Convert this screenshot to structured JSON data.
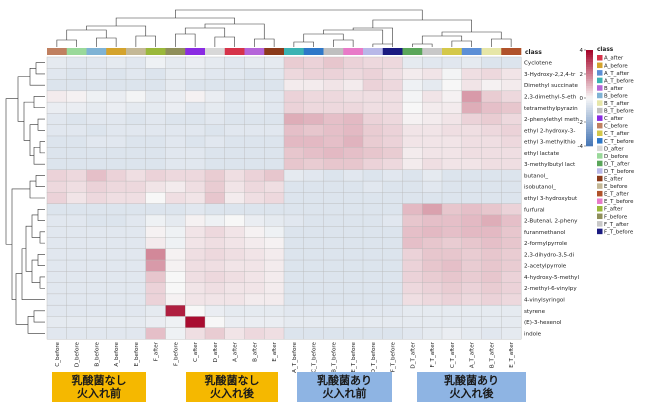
{
  "chart_data": {
    "type": "heatmap",
    "title": "",
    "columns": [
      "C_before",
      "D_before",
      "B_before",
      "A_before",
      "E_before",
      "F_after",
      "F_before",
      "C_after",
      "D_after",
      "A_after",
      "B_after",
      "E_after",
      "A_T_before",
      "C_T_before",
      "B_T_before",
      "E_T_before",
      "D_T_before",
      "F_T_before",
      "D_T_after",
      "F_T_after",
      "C_T_after",
      "A_T_after",
      "B_T_after",
      "E_T_after"
    ],
    "column_classes": [
      "C_before",
      "D_before",
      "B_before",
      "A_before",
      "E_before",
      "F_after",
      "F_before",
      "C_after",
      "D_after",
      "A_after",
      "B_after",
      "E_after",
      "A_T_before",
      "C_T_before",
      "B_T_before",
      "E_T_before",
      "D_T_before",
      "F_T_before",
      "D_T_after",
      "F_T_after",
      "C_T_after",
      "A_T_after",
      "B_T_after",
      "E_T_after"
    ],
    "rows": [
      "Cyclotene",
      "3-Hydroxy-2,2,4-tr",
      "Dimethyl succinate",
      "2,3-dimethyl-5-eth",
      "tetramethylpyrazin",
      "2-phenylethyl meth",
      "ethyl 2-hydroxy-3-",
      "ethyl 3-methylthio",
      "ethyl lactate",
      "3-methylbutyl lact",
      "butanol_",
      "isobutanol_",
      "ethyl 3-hydroxybut",
      "furfural",
      "2-Butenal, 2-pheny",
      "furanmethanol",
      "2-formylpyrrole",
      "2,3-dihydro-3,5-di",
      "2-acetylpyrrole",
      "4-hydroxy-5-methyl",
      "2-methyl-6-vinylpy",
      "4-vinylsyringol",
      "styrene",
      "(E)-3-hexenol",
      "indole"
    ],
    "values": [
      [
        -0.4,
        -0.5,
        -0.5,
        -0.4,
        -0.5,
        -0.2,
        -0.4,
        -0.3,
        -0.4,
        -0.5,
        -0.4,
        -0.4,
        0.7,
        0.6,
        0.8,
        0.6,
        0.5,
        0.5,
        -0.4,
        -0.5,
        -0.5,
        -0.4,
        -0.6,
        -0.6
      ],
      [
        -0.5,
        -0.6,
        -0.5,
        -0.6,
        -0.5,
        -0.6,
        -0.4,
        -0.4,
        -0.5,
        -0.5,
        -0.6,
        -0.5,
        0.5,
        0.6,
        0.6,
        0.5,
        0.6,
        0.4,
        0.2,
        0.3,
        -0.1,
        0.4,
        0.5,
        0.3
      ],
      [
        -0.6,
        -0.6,
        -0.6,
        -0.6,
        -0.6,
        -0.6,
        -0.4,
        -0.6,
        -0.6,
        -0.6,
        -0.6,
        -0.6,
        0.2,
        0.2,
        0.3,
        0.2,
        0.6,
        0.5,
        -0.2,
        -0.4,
        0.0,
        0.3,
        0.1,
        0.2
      ],
      [
        0.2,
        0.1,
        -0.2,
        -0.3,
        -0.1,
        -0.4,
        -0.3,
        0.1,
        -0.3,
        -0.5,
        -0.4,
        -0.5,
        0.6,
        0.5,
        0.5,
        0.4,
        0.4,
        0.4,
        -0.1,
        0.3,
        0.1,
        1.5,
        0.7,
        0.5
      ],
      [
        -0.3,
        -0.3,
        -0.4,
        -0.3,
        -0.4,
        -0.4,
        -0.3,
        -0.5,
        -0.4,
        -0.5,
        -0.4,
        -0.5,
        0.6,
        0.5,
        0.5,
        0.5,
        0.4,
        0.4,
        0.0,
        0.2,
        0.2,
        1.2,
        0.9,
        0.8
      ],
      [
        -0.5,
        -0.6,
        -0.5,
        -0.5,
        -0.6,
        -0.5,
        -0.6,
        -0.6,
        -0.5,
        -0.6,
        -0.6,
        -0.6,
        1.2,
        1.1,
        0.9,
        1.0,
        0.6,
        0.5,
        0.1,
        0.2,
        0.3,
        0.6,
        0.7,
        0.5
      ],
      [
        -0.5,
        -0.5,
        -0.6,
        -0.5,
        -0.5,
        -0.5,
        -0.5,
        -0.5,
        -0.6,
        -0.5,
        -0.5,
        -0.5,
        0.9,
        0.8,
        0.9,
        1.0,
        0.7,
        0.6,
        0.3,
        0.3,
        0.4,
        0.4,
        0.5,
        0.6
      ],
      [
        -0.6,
        -0.6,
        -0.5,
        -0.5,
        -0.6,
        -0.6,
        -0.5,
        -0.6,
        -0.5,
        -0.6,
        -0.6,
        -0.6,
        1.0,
        1.0,
        0.9,
        1.1,
        0.7,
        0.6,
        0.3,
        0.3,
        0.3,
        0.4,
        0.4,
        0.5
      ],
      [
        -0.6,
        -0.6,
        -0.6,
        -0.6,
        -0.6,
        -0.6,
        -0.5,
        -0.5,
        -0.6,
        -0.6,
        -0.6,
        -0.6,
        0.8,
        0.9,
        1.0,
        0.9,
        0.8,
        0.7,
        0.2,
        0.3,
        0.3,
        0.4,
        0.4,
        0.4
      ],
      [
        -0.6,
        -0.6,
        -0.6,
        -0.6,
        -0.6,
        -0.6,
        -0.5,
        -0.5,
        -0.6,
        -0.6,
        -0.6,
        -0.6,
        0.8,
        0.7,
        0.8,
        0.8,
        0.6,
        0.5,
        0.2,
        0.4,
        0.3,
        0.3,
        0.4,
        0.4
      ],
      [
        0.6,
        0.5,
        0.9,
        0.6,
        0.4,
        0.6,
        0.5,
        0.5,
        0.7,
        0.4,
        0.6,
        0.8,
        -0.4,
        -0.5,
        -0.6,
        -0.5,
        -0.6,
        -0.5,
        -0.6,
        -0.4,
        -0.6,
        -0.6,
        -0.6,
        -0.6
      ],
      [
        0.5,
        0.4,
        0.6,
        0.5,
        0.5,
        0.3,
        0.2,
        0.4,
        0.7,
        0.3,
        0.5,
        0.4,
        -0.6,
        -0.6,
        -0.6,
        -0.6,
        -0.5,
        -0.6,
        -0.6,
        -0.5,
        -0.6,
        -0.6,
        -0.6,
        -0.6
      ],
      [
        0.6,
        0.3,
        0.5,
        0.4,
        0.4,
        0.0,
        0.4,
        0.3,
        0.8,
        0.2,
        0.4,
        0.5,
        -0.6,
        -0.6,
        -0.6,
        -0.6,
        -0.6,
        -0.6,
        -0.6,
        -0.6,
        -0.6,
        -0.6,
        -0.6,
        -0.6
      ],
      [
        -0.6,
        -0.6,
        -0.6,
        -0.6,
        -0.6,
        -0.6,
        -0.6,
        -0.5,
        -0.6,
        -0.6,
        -0.6,
        -0.6,
        -0.6,
        -0.6,
        -0.6,
        -0.6,
        -0.6,
        -0.6,
        1.0,
        1.4,
        0.8,
        0.9,
        0.8,
        0.6
      ],
      [
        -0.5,
        -0.5,
        -0.6,
        -0.6,
        -0.5,
        -0.2,
        -0.4,
        0.1,
        -0.2,
        0.0,
        -0.3,
        -0.4,
        -0.5,
        -0.6,
        -0.6,
        -0.6,
        -0.6,
        -0.5,
        0.8,
        0.9,
        0.9,
        1.0,
        1.2,
        0.9
      ],
      [
        -0.5,
        -0.5,
        -0.5,
        -0.5,
        -0.5,
        0.1,
        -0.2,
        0.3,
        0.5,
        0.3,
        0.1,
        -0.2,
        -0.6,
        -0.6,
        -0.6,
        -0.6,
        -0.6,
        -0.6,
        0.9,
        1.0,
        0.9,
        1.0,
        1.0,
        0.8
      ],
      [
        -0.5,
        -0.5,
        -0.5,
        -0.5,
        -0.5,
        0.2,
        -0.2,
        0.3,
        0.4,
        0.3,
        0.2,
        0.1,
        -0.6,
        -0.6,
        -0.6,
        -0.6,
        -0.6,
        -0.6,
        0.9,
        0.8,
        0.7,
        0.8,
        0.9,
        0.8
      ],
      [
        -0.5,
        -0.5,
        -0.5,
        -0.5,
        -0.5,
        1.8,
        0.1,
        0.4,
        0.5,
        0.4,
        0.3,
        0.2,
        -0.6,
        -0.6,
        -0.6,
        -0.6,
        -0.6,
        -0.6,
        0.6,
        0.8,
        0.8,
        0.7,
        0.8,
        0.7
      ],
      [
        -0.5,
        -0.5,
        -0.5,
        -0.5,
        -0.5,
        1.5,
        0.1,
        0.4,
        0.4,
        0.3,
        0.3,
        0.2,
        -0.6,
        -0.6,
        -0.6,
        -0.6,
        -0.6,
        -0.6,
        0.6,
        0.8,
        0.9,
        0.7,
        0.8,
        0.7
      ],
      [
        -0.5,
        -0.5,
        -0.5,
        -0.5,
        -0.5,
        0.8,
        0.0,
        0.4,
        0.5,
        0.4,
        0.3,
        0.2,
        -0.6,
        -0.6,
        -0.6,
        -0.6,
        -0.6,
        -0.6,
        0.6,
        0.7,
        0.8,
        0.7,
        0.8,
        0.6
      ],
      [
        -0.5,
        -0.5,
        -0.5,
        -0.5,
        -0.5,
        0.6,
        0.0,
        0.3,
        0.4,
        0.3,
        0.3,
        0.2,
        -0.6,
        -0.6,
        -0.6,
        -0.6,
        -0.6,
        -0.6,
        0.5,
        0.6,
        0.7,
        0.6,
        0.7,
        0.6
      ],
      [
        -0.5,
        -0.5,
        -0.5,
        -0.5,
        -0.5,
        0.6,
        0.1,
        0.3,
        0.3,
        0.3,
        0.2,
        0.2,
        -0.6,
        -0.6,
        -0.6,
        -0.6,
        -0.6,
        -0.6,
        0.4,
        0.5,
        0.6,
        0.5,
        0.6,
        0.5
      ],
      [
        -0.5,
        -0.5,
        -0.5,
        -0.5,
        -0.5,
        -0.4,
        3.5,
        0.0,
        -0.3,
        -0.4,
        -0.4,
        -0.4,
        -0.5,
        -0.5,
        -0.5,
        -0.5,
        -0.5,
        -0.5,
        -0.4,
        -0.4,
        -0.4,
        -0.4,
        -0.4,
        -0.4
      ],
      [
        -0.4,
        -0.4,
        -0.4,
        -0.4,
        -0.4,
        -0.3,
        -0.2,
        3.8,
        0.0,
        -0.3,
        -0.3,
        -0.3,
        -0.4,
        -0.4,
        -0.4,
        -0.4,
        -0.4,
        -0.4,
        -0.4,
        -0.4,
        -0.4,
        -0.4,
        -0.4,
        -0.4
      ],
      [
        -0.5,
        -0.5,
        -0.5,
        -0.5,
        -0.5,
        0.9,
        -0.2,
        0.4,
        0.7,
        0.3,
        0.5,
        0.4,
        -0.6,
        -0.6,
        -0.6,
        -0.6,
        -0.6,
        -0.6,
        -0.5,
        -0.4,
        -0.3,
        -0.4,
        -0.5,
        -0.4
      ]
    ],
    "colorbar": {
      "min": -4,
      "max": 4,
      "ticks": [
        4,
        2,
        0,
        -2,
        -4
      ]
    },
    "colors": {
      "low": "#4575b4",
      "mid": "#f7f7f7",
      "high": "#a50026"
    },
    "annotation_label": "class",
    "legend": {
      "title": "class",
      "position": "right",
      "items": [
        {
          "name": "A_after",
          "color": "#d6334a"
        },
        {
          "name": "A_before",
          "color": "#d4a32c"
        },
        {
          "name": "A_T_after",
          "color": "#5c8fd6"
        },
        {
          "name": "A_T_before",
          "color": "#3bb3b3"
        },
        {
          "name": "B_after",
          "color": "#b565d9"
        },
        {
          "name": "B_before",
          "color": "#7fb3d5"
        },
        {
          "name": "B_T_after",
          "color": "#e6e6a8"
        },
        {
          "name": "B_T_before",
          "color": "#bfbfbf"
        },
        {
          "name": "C_after",
          "color": "#8a2be2"
        },
        {
          "name": "C_before",
          "color": "#c08060"
        },
        {
          "name": "C_T_after",
          "color": "#d4c84a"
        },
        {
          "name": "C_T_before",
          "color": "#2e78c8"
        },
        {
          "name": "D_after",
          "color": "#d8d8d8"
        },
        {
          "name": "D_before",
          "color": "#9ad99a"
        },
        {
          "name": "D_T_after",
          "color": "#5aa65a"
        },
        {
          "name": "D_T_before",
          "color": "#b8b8e8"
        },
        {
          "name": "E_after",
          "color": "#8b3a1a"
        },
        {
          "name": "E_before",
          "color": "#c4b896"
        },
        {
          "name": "E_T_after",
          "color": "#b0522a"
        },
        {
          "name": "E_T_before",
          "color": "#e87ac8"
        },
        {
          "name": "F_after",
          "color": "#9ab83a"
        },
        {
          "name": "F_before",
          "color": "#8f8f5a"
        },
        {
          "name": "F_T_after",
          "color": "#c8c8c8"
        },
        {
          "name": "F_T_before",
          "color": "#1a1a80"
        }
      ]
    }
  },
  "groups": [
    {
      "line1": "乳酸菌なし",
      "line2": "火入れ前",
      "color": "#f5b800"
    },
    {
      "line1": "乳酸菌なし",
      "line2": "火入れ後",
      "color": "#f5b800"
    },
    {
      "line1": "乳酸菌あり",
      "line2": "火入れ前",
      "color": "#8eb4e3"
    },
    {
      "line1": "乳酸菌あり",
      "line2": "火入れ後",
      "color": "#8eb4e3"
    }
  ]
}
